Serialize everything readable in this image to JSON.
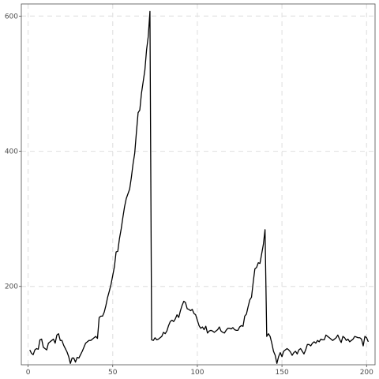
{
  "chart_data": {
    "type": "line",
    "title": "",
    "xlabel": "",
    "ylabel": "",
    "xlim": [
      -4,
      205
    ],
    "ylim": [
      84,
      618
    ],
    "x_ticks": [
      0,
      50,
      100,
      150,
      200
    ],
    "y_ticks": [
      200,
      400,
      600
    ],
    "x_tick_labels": [
      "0",
      "50",
      "100",
      "150",
      "200"
    ],
    "y_tick_labels": [
      "200",
      "400",
      "600"
    ],
    "grid": true,
    "legend": "none",
    "line_color": "#000000",
    "series": [
      {
        "x": [
          1,
          2,
          3,
          4,
          5,
          6,
          7,
          8,
          9,
          10,
          11,
          12,
          13,
          14,
          15,
          16,
          17,
          18,
          19,
          20,
          21,
          22,
          23,
          24,
          25,
          26,
          27,
          28,
          29,
          30,
          31,
          32,
          33,
          34,
          35,
          36,
          37,
          38,
          39,
          40,
          41,
          42,
          43,
          44,
          45,
          46,
          47,
          48,
          49,
          50,
          51,
          52,
          53,
          54,
          55,
          56,
          57,
          58,
          59,
          60,
          61,
          62,
          63,
          64,
          65,
          66,
          67,
          68,
          69,
          70,
          71,
          72,
          73,
          74,
          75,
          76,
          77,
          78,
          79,
          80,
          81,
          82,
          83,
          84,
          85,
          86,
          87,
          88,
          89,
          90,
          91,
          92,
          93,
          94,
          95,
          96,
          97,
          98,
          99,
          100,
          101,
          102,
          103,
          104,
          105,
          106,
          107,
          108,
          109,
          110,
          111,
          112,
          113,
          114,
          115,
          116,
          117,
          118,
          119,
          120,
          121,
          122,
          123,
          124,
          125,
          126,
          127,
          128,
          129,
          130,
          131,
          132,
          133,
          134,
          135,
          136,
          137,
          138,
          139,
          140,
          141,
          142,
          143,
          144,
          145,
          146,
          147,
          148,
          149,
          150,
          151,
          152,
          153,
          154,
          155,
          156,
          157,
          158,
          159,
          160,
          161,
          162,
          163,
          164,
          165,
          166,
          167,
          168,
          169,
          170,
          171,
          172,
          173,
          174,
          175,
          176,
          177,
          178,
          179,
          180,
          181,
          182,
          183,
          184,
          185,
          186,
          187,
          188,
          189,
          190,
          191,
          192,
          193,
          194,
          195,
          196,
          197,
          198,
          199,
          200,
          201
        ],
        "y": [
          106,
          101,
          99,
          106,
          108,
          107,
          121,
          122,
          110,
          108,
          106,
          116,
          118,
          120,
          122,
          116,
          128,
          130,
          120,
          120,
          113,
          108,
          103,
          96,
          86,
          94,
          94,
          88,
          95,
          94,
          99,
          104,
          110,
          116,
          118,
          120,
          120,
          122,
          124,
          126,
          123,
          154,
          156,
          156,
          162,
          172,
          184,
          193,
          203,
          216,
          229,
          251,
          252,
          271,
          285,
          302,
          318,
          330,
          337,
          344,
          361,
          381,
          397,
          428,
          457,
          461,
          486,
          503,
          520,
          550,
          570,
          607,
          121,
          120,
          124,
          121,
          122,
          124,
          126,
          132,
          130,
          134,
          142,
          148,
          150,
          148,
          152,
          158,
          154,
          164,
          172,
          178,
          176,
          167,
          166,
          164,
          166,
          160,
          158,
          150,
          142,
          138,
          140,
          136,
          141,
          131,
          134,
          135,
          134,
          132,
          134,
          136,
          140,
          134,
          132,
          131,
          135,
          138,
          138,
          137,
          139,
          136,
          135,
          135,
          140,
          142,
          141,
          156,
          159,
          170,
          180,
          184,
          206,
          226,
          228,
          235,
          234,
          248,
          262,
          284,
          126,
          130,
          126,
          116,
          104,
          98,
          86,
          96,
          102,
          96,
          104,
          106,
          108,
          106,
          103,
          98,
          102,
          104,
          100,
          106,
          108,
          104,
          100,
          106,
          114,
          114,
          112,
          116,
          118,
          116,
          120,
          118,
          122,
          121,
          121,
          128,
          126,
          124,
          122,
          120,
          122,
          124,
          128,
          122,
          117,
          126,
          124,
          120,
          122,
          118,
          120,
          122,
          126,
          125,
          124,
          124,
          122,
          112,
          126,
          124,
          118
        ]
      }
    ]
  }
}
